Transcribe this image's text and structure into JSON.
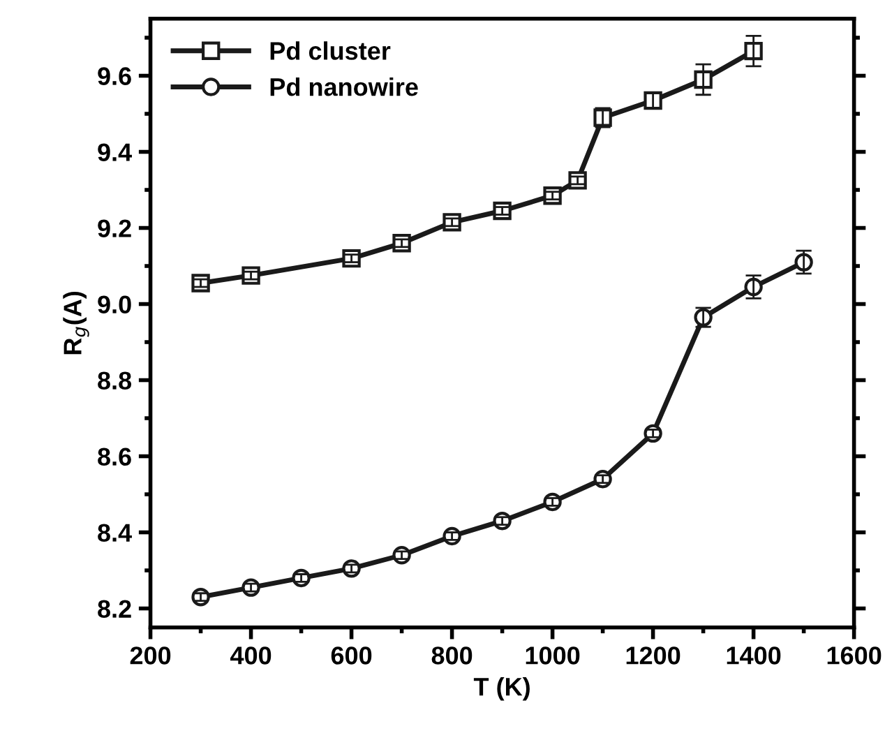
{
  "chart_data": {
    "type": "line",
    "xlabel": "T (K)",
    "ylabel": "R$_{g}$(A)",
    "xlim": [
      200,
      1600
    ],
    "xticks": [
      200,
      400,
      600,
      800,
      1000,
      1200,
      1400,
      1600
    ],
    "ylim": [
      8.15,
      9.75
    ],
    "yticks": [
      8.2,
      8.4,
      8.6,
      8.8,
      {
        "value": 9.0,
        "label": "9.0"
      },
      9.2,
      9.4,
      9.6
    ],
    "legend": "top left",
    "grid": false,
    "line_style": "solid",
    "series": [
      {
        "name": "Pd cluster",
        "color": "#1a1a1a",
        "marker": "square",
        "x": [
          300,
          400,
          600,
          700,
          800,
          900,
          1000,
          1050,
          1100,
          1200,
          1300,
          1400
        ],
        "values": [
          9.055,
          9.075,
          9.12,
          9.16,
          9.215,
          9.245,
          9.285,
          9.325,
          9.49,
          9.535,
          9.59,
          9.665
        ],
        "errors": [
          0.01,
          0.01,
          0.01,
          0.01,
          0.01,
          0.01,
          0.01,
          0.01,
          0.025,
          0.02,
          0.04,
          0.04
        ]
      },
      {
        "name": "Pd nanowire",
        "color": "#1a1a1a",
        "marker": "circle",
        "x": [
          300,
          400,
          500,
          600,
          700,
          800,
          900,
          1000,
          1100,
          1200,
          1300,
          1400,
          1500
        ],
        "values": [
          8.23,
          8.255,
          8.28,
          8.305,
          8.34,
          8.39,
          8.43,
          8.48,
          8.54,
          8.66,
          8.965,
          9.045,
          9.11
        ],
        "errors": [
          0.01,
          0.01,
          0.01,
          0.01,
          0.01,
          0.01,
          0.01,
          0.01,
          0.01,
          0.01,
          0.025,
          0.03,
          0.03
        ]
      }
    ]
  }
}
